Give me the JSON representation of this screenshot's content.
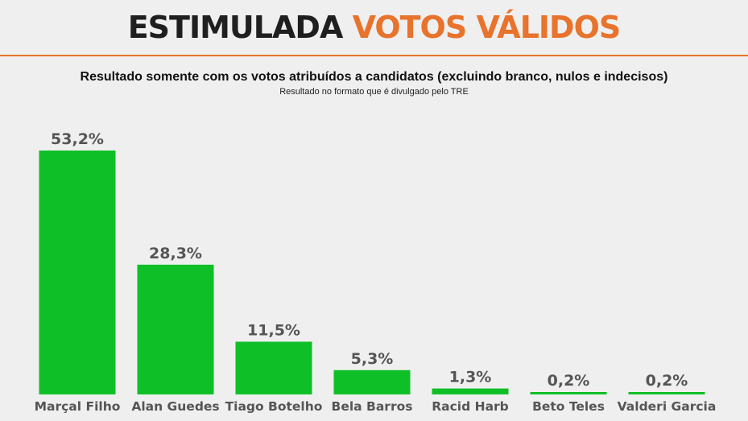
{
  "header": {
    "title_part1": "ESTIMULADA",
    "title_part2": "VOTOS VÁLIDOS",
    "accent_color": "#e8732c"
  },
  "subtitle": "Resultado somente com os votos atribuídos a candidatos (excluindo branco, nulos e indecisos)",
  "note": "Resultado no formato que é divulgado pelo TRE",
  "chart_data": {
    "type": "bar",
    "categories": [
      "Marçal Filho",
      "Alan Guedes",
      "Tiago Botelho",
      "Bela Barros",
      "Racid Harb",
      "Beto Teles",
      "Valderi Garcia"
    ],
    "values": [
      53.2,
      28.3,
      11.5,
      5.3,
      1.3,
      0.2,
      0.2
    ],
    "value_labels": [
      "53,2%",
      "28,3%",
      "11,5%",
      "5,3%",
      "1,3%",
      "0,2%",
      "0,2%"
    ],
    "bar_color": "#0fbf27",
    "ylim": [
      0,
      53.2
    ],
    "grid": false,
    "legend": "none"
  }
}
